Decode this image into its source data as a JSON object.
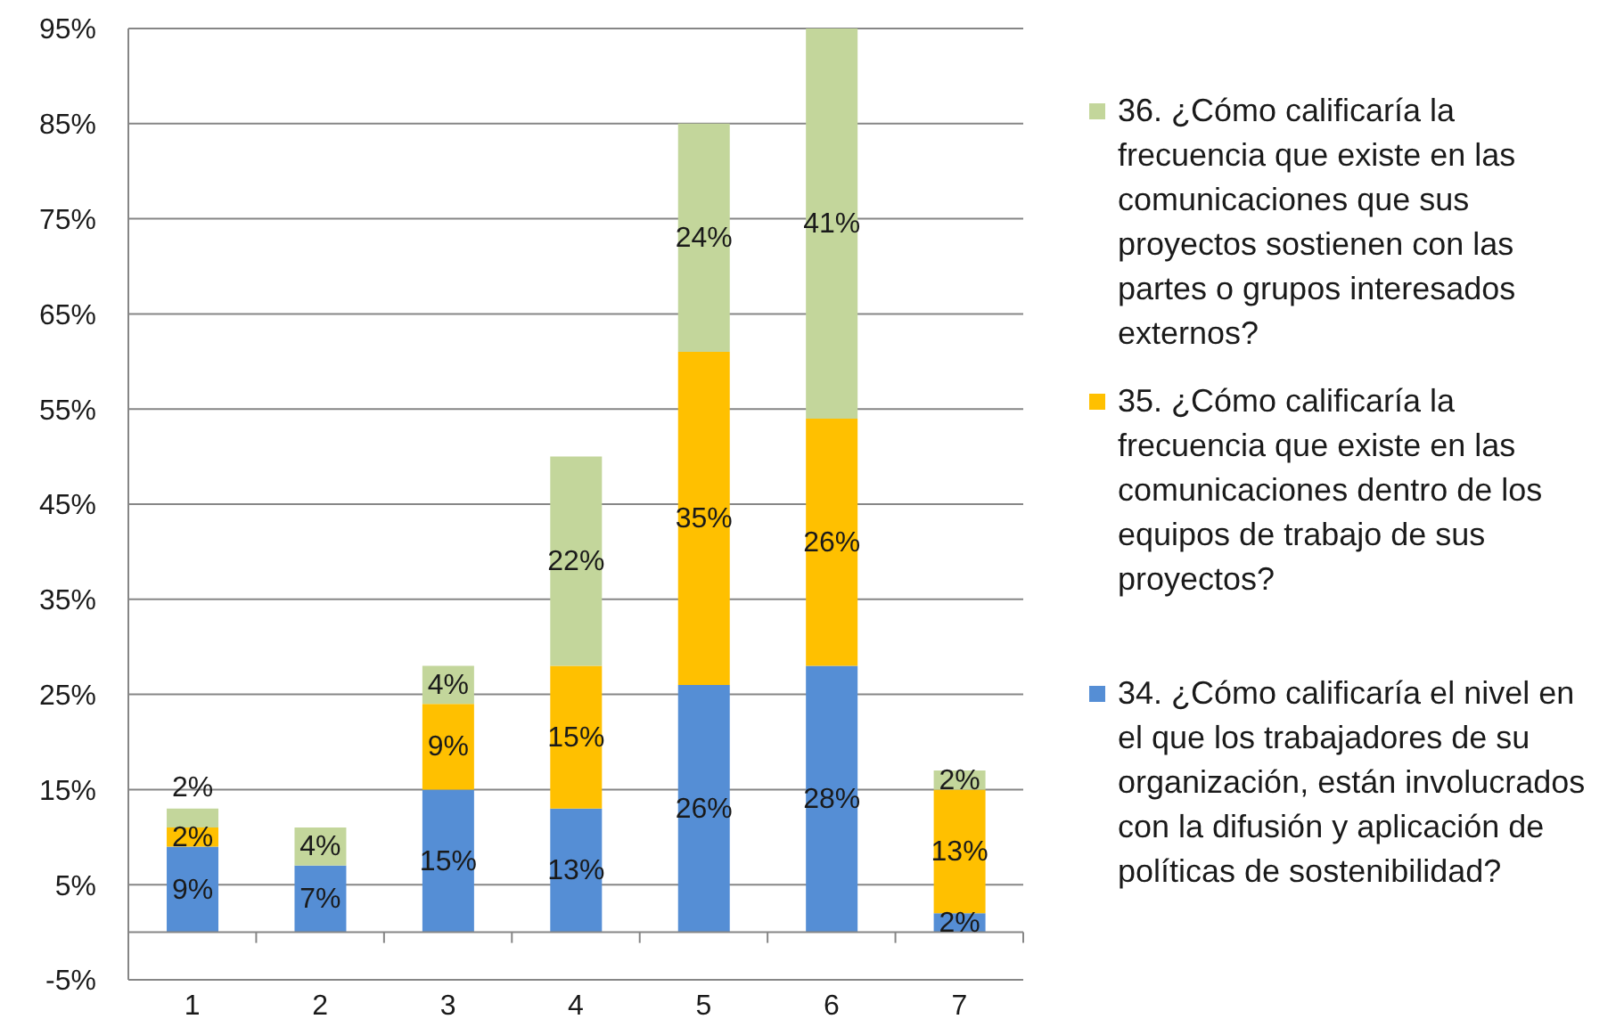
{
  "chart_data": {
    "type": "bar",
    "stacked": true,
    "categories": [
      "1",
      "2",
      "3",
      "4",
      "5",
      "6",
      "7"
    ],
    "series": [
      {
        "name": "34. ¿Cómo calificaría el nivel en el que los trabajadores de su organización, están involucrados con la difusión y aplicación de políticas de sostenibilidad?",
        "color": "#558ed5",
        "values": [
          9,
          7,
          15,
          13,
          26,
          28,
          2
        ],
        "value_labels": [
          "9%",
          "7%",
          "15%",
          "13%",
          "26%",
          "28%",
          "2%"
        ]
      },
      {
        "name": "35. ¿Cómo calificaría la frecuencia que existe en las comunicaciones dentro de los equipos de trabajo de sus proyectos?",
        "color": "#ffc000",
        "values": [
          2,
          null,
          9,
          15,
          35,
          26,
          13
        ],
        "value_labels": [
          "2%",
          null,
          "9%",
          "15%",
          "35%",
          "26%",
          "13%"
        ]
      },
      {
        "name": "36. ¿Cómo calificaría la frecuencia que existe en las comunicaciones que sus proyectos sostienen con las partes o grupos interesados externos?",
        "color": "#c3d69b",
        "values": [
          2,
          4,
          4,
          22,
          24,
          41,
          2
        ],
        "value_labels": [
          "2%",
          "4%",
          "4%",
          "22%",
          "24%",
          "41%",
          "2%"
        ]
      }
    ],
    "ylim": [
      -5,
      95
    ],
    "yticks": [
      {
        "value": -5,
        "label": "-5%"
      },
      {
        "value": 5,
        "label": "5%"
      },
      {
        "value": 15,
        "label": "15%"
      },
      {
        "value": 25,
        "label": "25%"
      },
      {
        "value": 35,
        "label": "35%"
      },
      {
        "value": 45,
        "label": "45%"
      },
      {
        "value": 55,
        "label": "55%"
      },
      {
        "value": 65,
        "label": "65%"
      },
      {
        "value": 75,
        "label": "75%"
      },
      {
        "value": 85,
        "label": "85%"
      },
      {
        "value": 95,
        "label": "95%"
      }
    ],
    "grid": "y",
    "legend": "right"
  }
}
